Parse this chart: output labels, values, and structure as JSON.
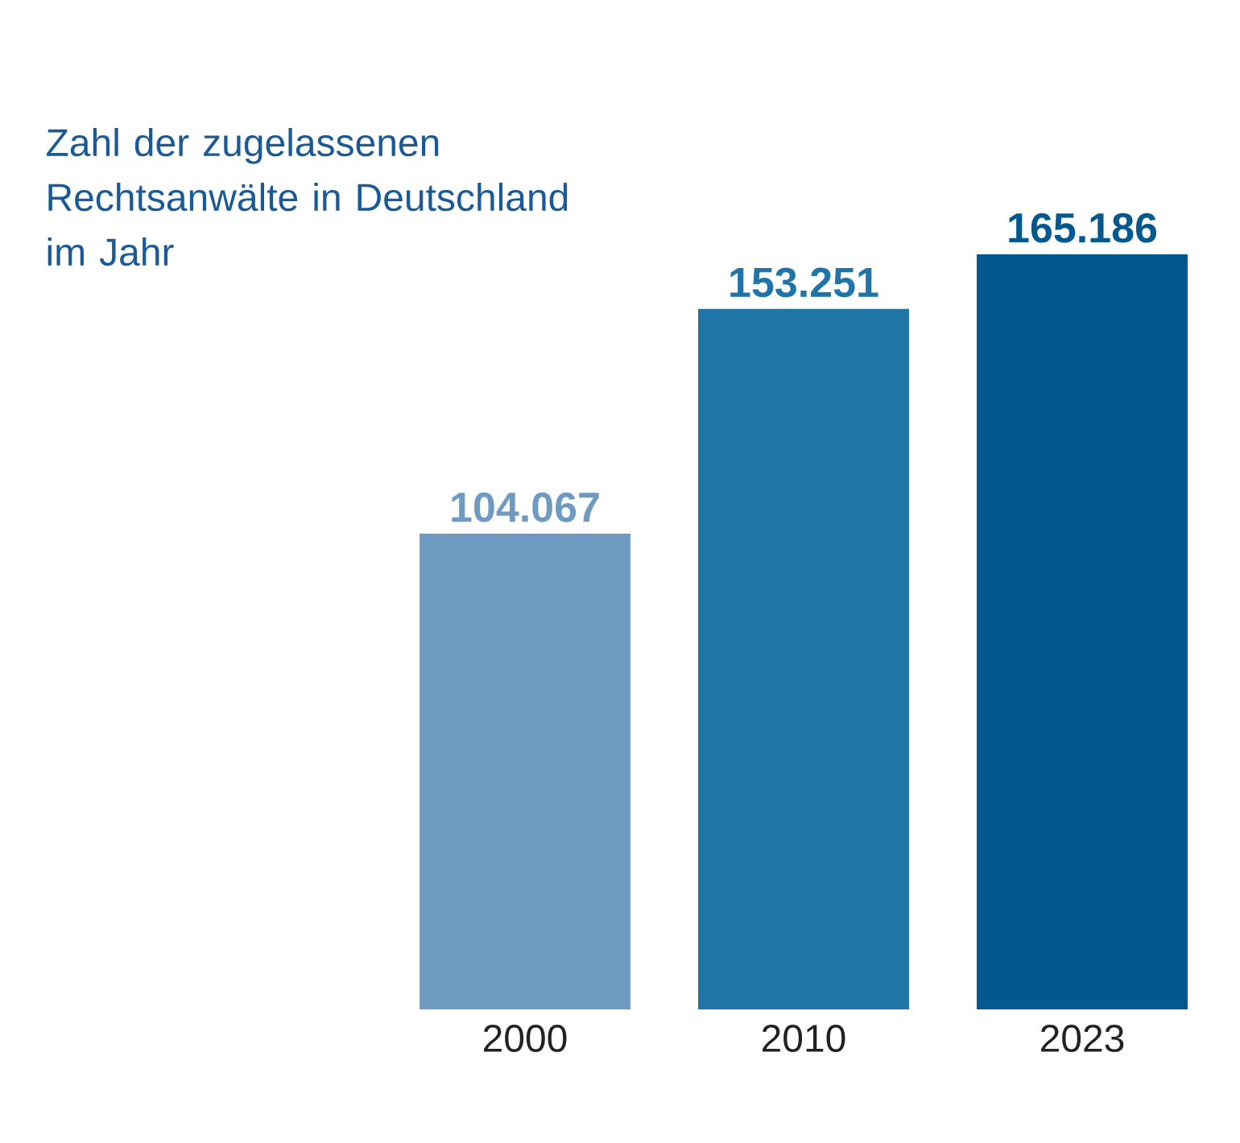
{
  "chart_data": {
    "type": "bar",
    "title": "Zahl der zugelassenen Rechtsanwälte in Deutschland im Jahr",
    "categories": [
      "2000",
      "2010",
      "2023"
    ],
    "values": [
      104067,
      153251,
      165186
    ],
    "colors": [
      "#6f9bc3",
      "#1f74a8",
      "#03588f"
    ],
    "value_labels": [
      "104.067",
      "153.251",
      "165.186"
    ]
  }
}
